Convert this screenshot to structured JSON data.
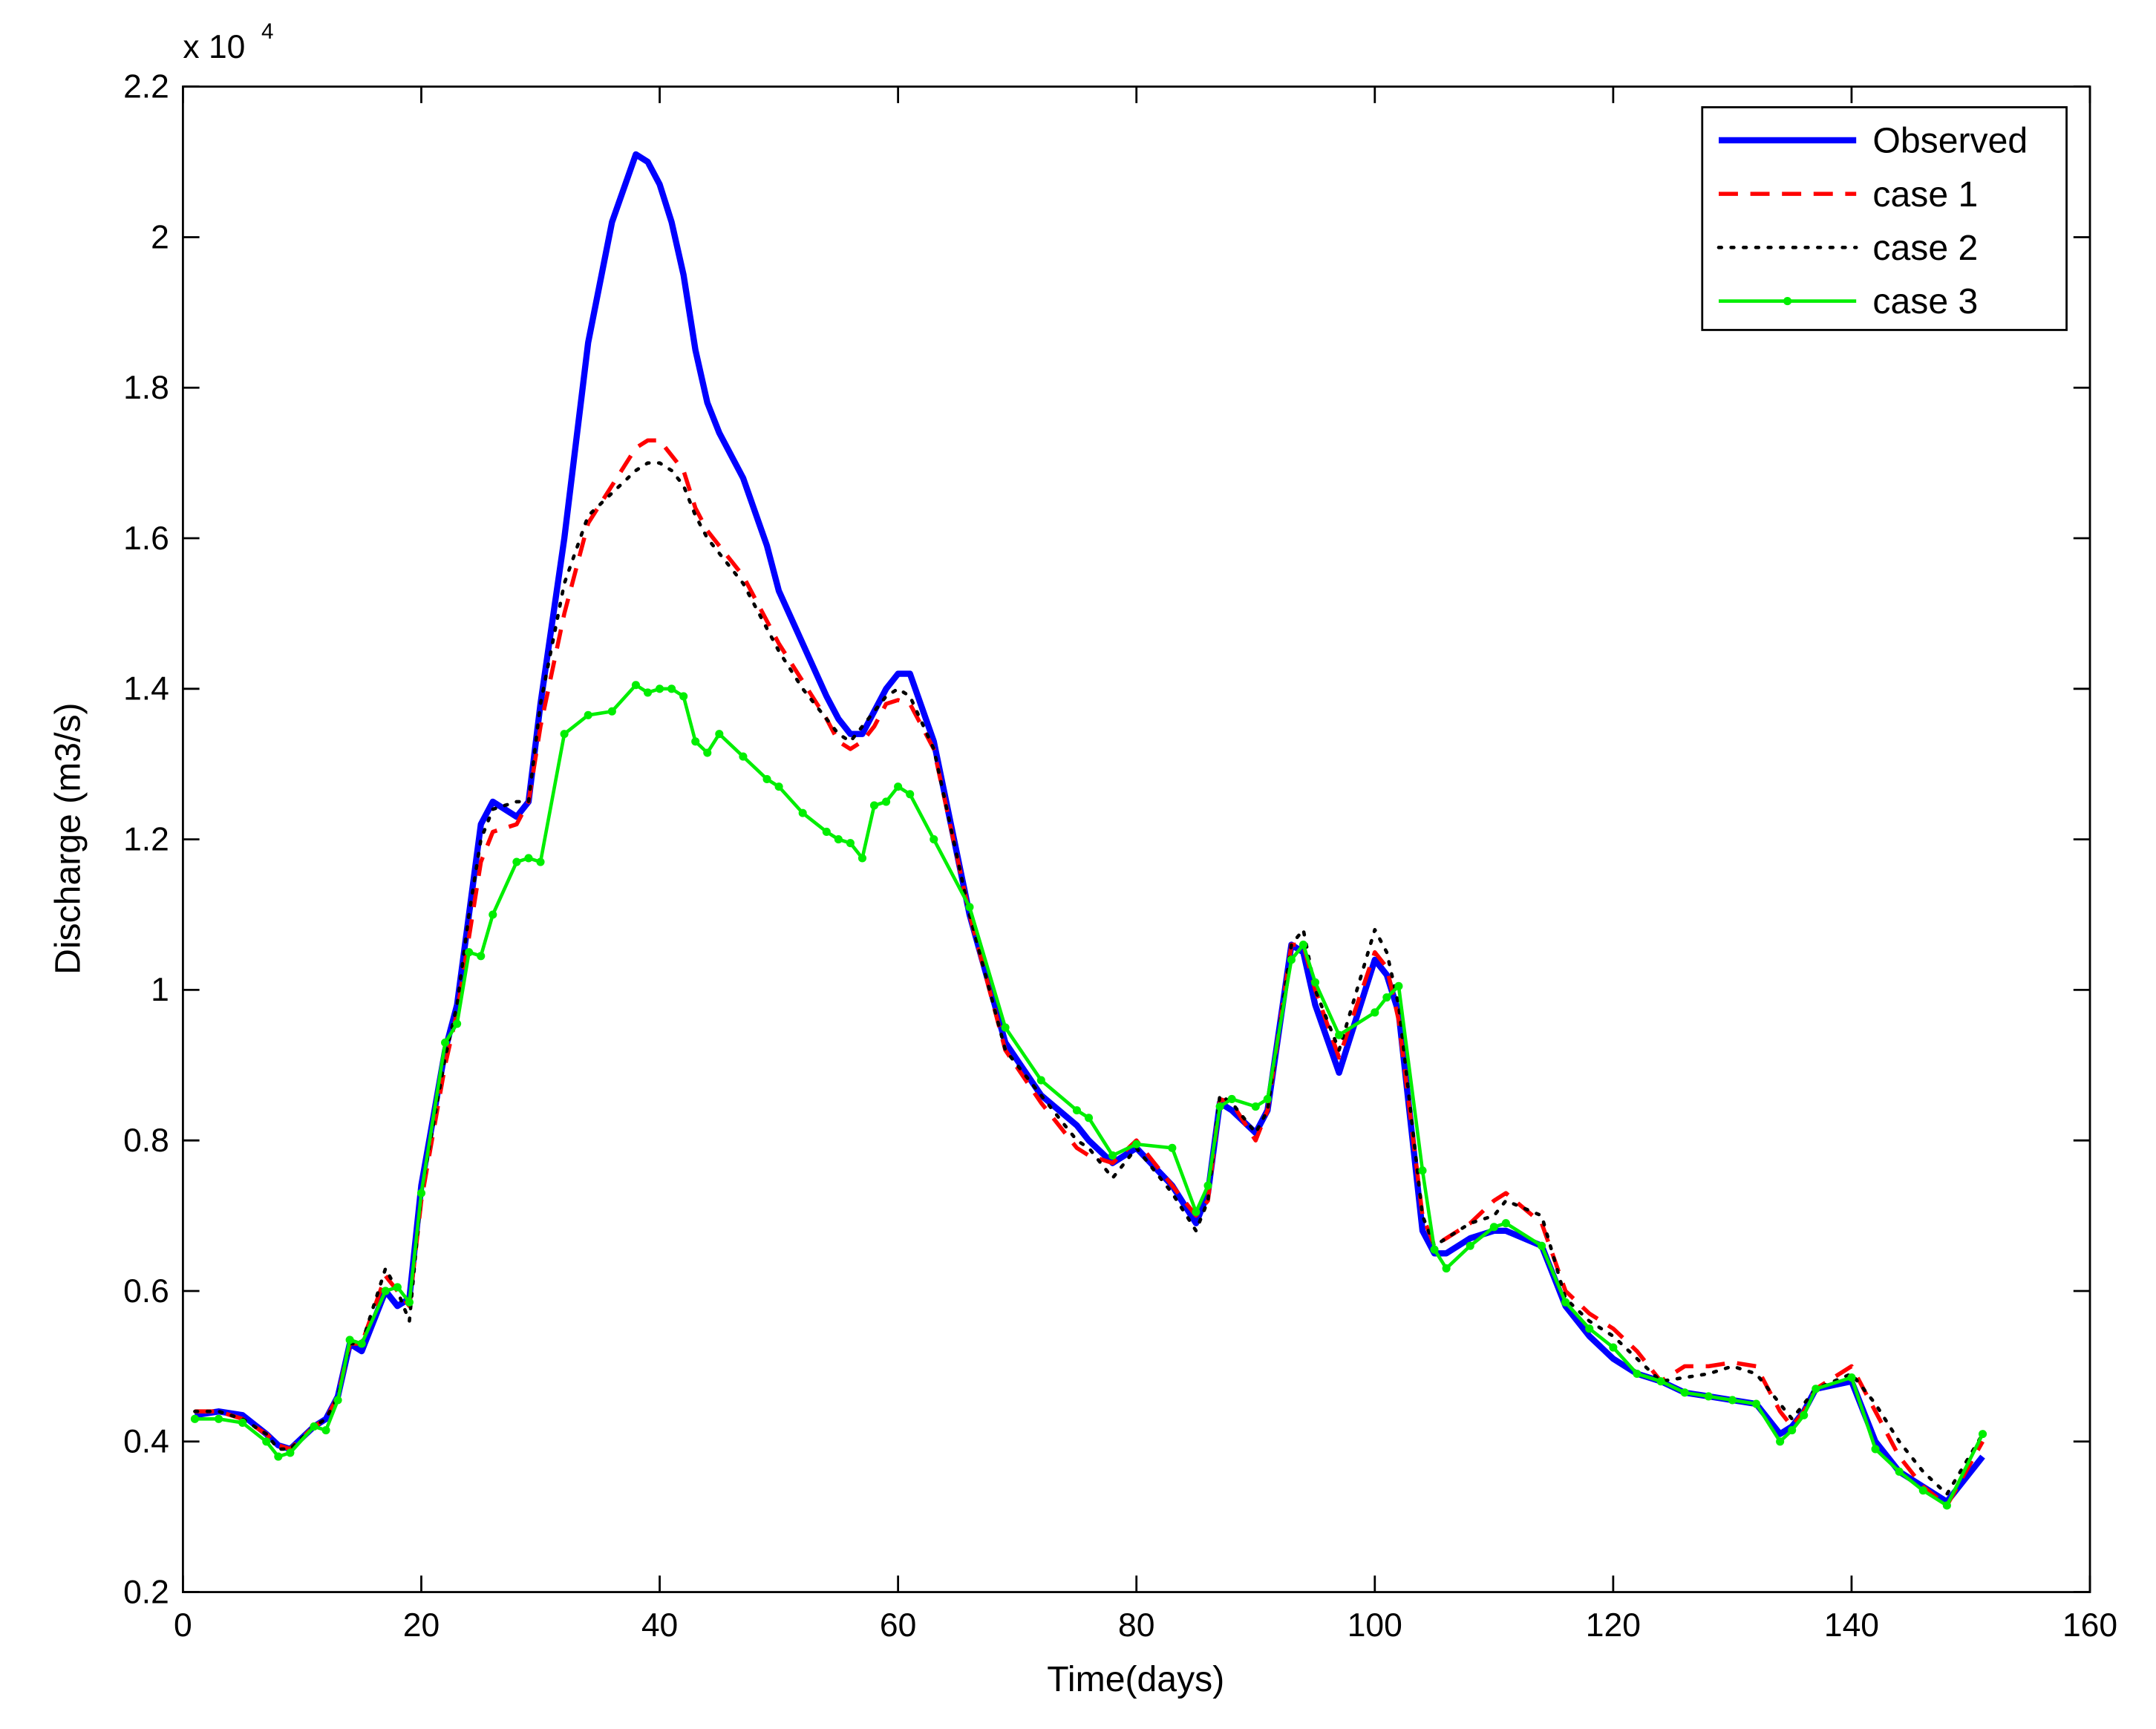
{
  "chart_data": {
    "type": "line",
    "x_label": "Time(days)",
    "y_label": "Discharge (m3/s)",
    "y_multiplier": "x 10",
    "y_multiplier_exponent": "4",
    "xlim": [
      0,
      160
    ],
    "xticks": [
      0,
      20,
      40,
      60,
      80,
      100,
      120,
      140,
      160
    ],
    "ylim": [
      0.2,
      2.2
    ],
    "yticks": [
      0.2,
      0.4,
      0.6,
      0.8,
      1,
      1.2,
      1.4,
      1.6,
      1.8,
      2,
      2.2
    ],
    "grid": false,
    "legend": "upper-right",
    "x": [
      1,
      3,
      5,
      7,
      8,
      9,
      11,
      12,
      13,
      14,
      15,
      17,
      18,
      19,
      20,
      22,
      23,
      24,
      25,
      26,
      28,
      29,
      30,
      32,
      34,
      36,
      38,
      39,
      40,
      41,
      42,
      43,
      44,
      45,
      47,
      49,
      50,
      52,
      54,
      55,
      56,
      57,
      58,
      59,
      60,
      61,
      63,
      66,
      69,
      72,
      75,
      76,
      78,
      80,
      83,
      85,
      86,
      87,
      88,
      90,
      91,
      93,
      94,
      95,
      97,
      100,
      101,
      102,
      104,
      105,
      106,
      108,
      110,
      111,
      114,
      116,
      118,
      120,
      122,
      124,
      126,
      128,
      130,
      132,
      134,
      135,
      136,
      137,
      140,
      142,
      144,
      146,
      148,
      151
    ],
    "series": [
      {
        "name": "Observed",
        "color": "#0000ff",
        "line_style": "solid",
        "marker": "none",
        "values": [
          0.435,
          0.44,
          0.435,
          0.41,
          0.395,
          0.39,
          0.42,
          0.43,
          0.46,
          0.53,
          0.52,
          0.6,
          0.58,
          0.59,
          0.74,
          0.92,
          0.98,
          1.1,
          1.22,
          1.25,
          1.23,
          1.25,
          1.38,
          1.6,
          1.86,
          2.02,
          2.11,
          2.1,
          2.07,
          2.02,
          1.95,
          1.85,
          1.78,
          1.74,
          1.68,
          1.59,
          1.53,
          1.46,
          1.39,
          1.36,
          1.34,
          1.34,
          1.37,
          1.4,
          1.42,
          1.42,
          1.33,
          1.1,
          0.93,
          0.86,
          0.82,
          0.8,
          0.77,
          0.79,
          0.74,
          0.69,
          0.73,
          0.85,
          0.84,
          0.81,
          0.84,
          1.06,
          1.05,
          0.98,
          0.89,
          1.04,
          1.02,
          0.97,
          0.68,
          0.65,
          0.65,
          0.67,
          0.68,
          0.68,
          0.66,
          0.58,
          0.54,
          0.51,
          0.49,
          0.48,
          0.465,
          0.46,
          0.455,
          0.45,
          0.41,
          0.42,
          0.44,
          0.47,
          0.48,
          0.4,
          0.36,
          0.34,
          0.32,
          0.38
        ]
      },
      {
        "name": "case 1",
        "color": "#ff0000",
        "line_style": "dashed",
        "marker": "none",
        "values": [
          0.44,
          0.44,
          0.43,
          0.41,
          0.395,
          0.39,
          0.42,
          0.43,
          0.46,
          0.53,
          0.53,
          0.62,
          0.6,
          0.58,
          0.72,
          0.9,
          0.97,
          1.07,
          1.17,
          1.21,
          1.22,
          1.25,
          1.35,
          1.5,
          1.62,
          1.67,
          1.72,
          1.73,
          1.73,
          1.71,
          1.69,
          1.64,
          1.61,
          1.59,
          1.55,
          1.49,
          1.46,
          1.41,
          1.36,
          1.33,
          1.32,
          1.33,
          1.35,
          1.38,
          1.385,
          1.38,
          1.32,
          1.1,
          0.92,
          0.85,
          0.79,
          0.78,
          0.77,
          0.8,
          0.74,
          0.7,
          0.72,
          0.855,
          0.85,
          0.8,
          0.84,
          1.06,
          1.06,
          1.0,
          0.91,
          1.05,
          1.03,
          0.96,
          0.7,
          0.66,
          0.67,
          0.69,
          0.72,
          0.73,
          0.69,
          0.6,
          0.57,
          0.55,
          0.52,
          0.48,
          0.5,
          0.5,
          0.505,
          0.5,
          0.44,
          0.42,
          0.44,
          0.47,
          0.5,
          0.44,
          0.38,
          0.34,
          0.315,
          0.4
        ]
      },
      {
        "name": "case 2",
        "color": "#000000",
        "line_style": "dotted",
        "marker": "none",
        "values": [
          0.44,
          0.44,
          0.43,
          0.41,
          0.39,
          0.39,
          0.42,
          0.43,
          0.46,
          0.53,
          0.53,
          0.63,
          0.6,
          0.56,
          0.73,
          0.91,
          0.98,
          1.1,
          1.2,
          1.24,
          1.25,
          1.25,
          1.38,
          1.54,
          1.63,
          1.66,
          1.69,
          1.7,
          1.7,
          1.69,
          1.67,
          1.63,
          1.6,
          1.58,
          1.54,
          1.48,
          1.45,
          1.4,
          1.36,
          1.34,
          1.33,
          1.35,
          1.37,
          1.39,
          1.4,
          1.39,
          1.32,
          1.1,
          0.92,
          0.86,
          0.8,
          0.79,
          0.75,
          0.79,
          0.73,
          0.68,
          0.72,
          0.86,
          0.85,
          0.81,
          0.84,
          1.06,
          1.08,
          1.0,
          0.92,
          1.08,
          1.05,
          0.98,
          0.7,
          0.66,
          0.67,
          0.69,
          0.7,
          0.72,
          0.7,
          0.59,
          0.56,
          0.54,
          0.51,
          0.48,
          0.485,
          0.49,
          0.5,
          0.49,
          0.45,
          0.43,
          0.45,
          0.47,
          0.49,
          0.45,
          0.4,
          0.36,
          0.33,
          0.41
        ]
      },
      {
        "name": "case 3",
        "color": "#00ee00",
        "line_style": "solid",
        "marker": "dot",
        "values": [
          0.43,
          0.43,
          0.425,
          0.4,
          0.38,
          0.385,
          0.42,
          0.415,
          0.455,
          0.535,
          0.53,
          0.6,
          0.605,
          0.585,
          0.73,
          0.93,
          0.955,
          1.05,
          1.045,
          1.1,
          1.17,
          1.175,
          1.17,
          1.34,
          1.365,
          1.37,
          1.405,
          1.395,
          1.4,
          1.4,
          1.39,
          1.33,
          1.315,
          1.34,
          1.31,
          1.28,
          1.27,
          1.235,
          1.21,
          1.2,
          1.195,
          1.175,
          1.245,
          1.25,
          1.27,
          1.26,
          1.2,
          1.11,
          0.95,
          0.88,
          0.84,
          0.83,
          0.78,
          0.795,
          0.79,
          0.705,
          0.74,
          0.845,
          0.855,
          0.845,
          0.855,
          1.04,
          1.06,
          1.01,
          0.94,
          0.97,
          0.99,
          1.005,
          0.76,
          0.655,
          0.63,
          0.66,
          0.685,
          0.69,
          0.66,
          0.585,
          0.55,
          0.525,
          0.49,
          0.48,
          0.465,
          0.46,
          0.455,
          0.45,
          0.4,
          0.415,
          0.435,
          0.47,
          0.485,
          0.39,
          0.36,
          0.335,
          0.315,
          0.41
        ]
      }
    ]
  }
}
